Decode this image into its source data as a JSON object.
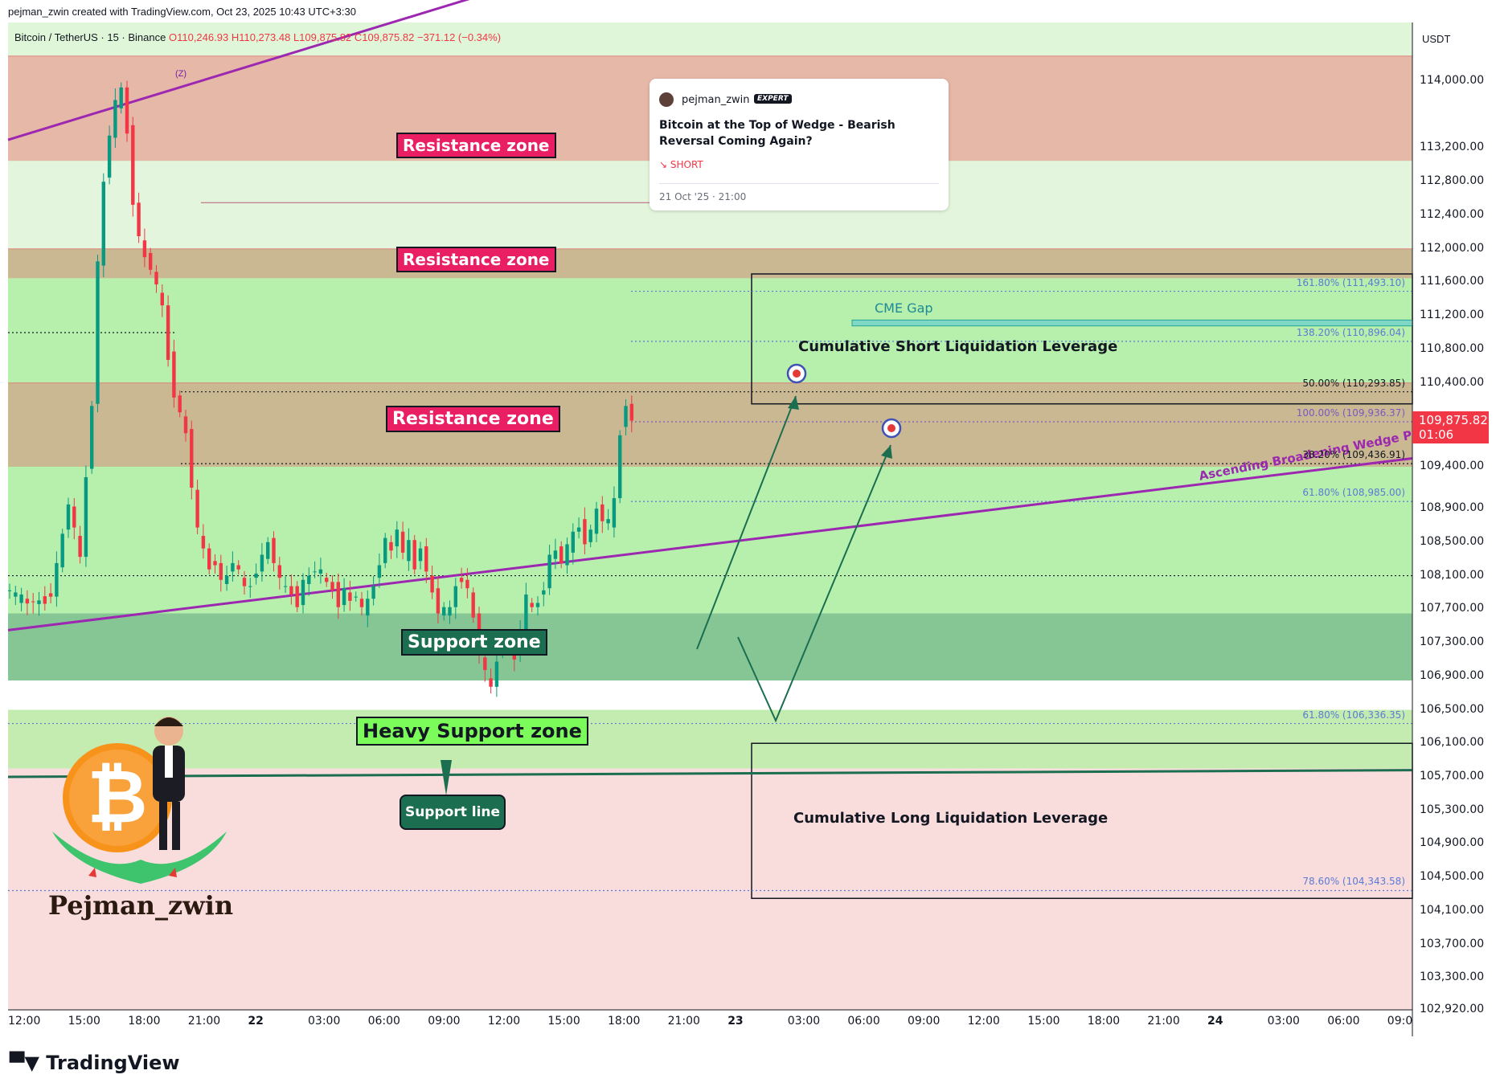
{
  "header": {
    "created_by": "pejman_zwin created with TradingView.com, Oct 23, 2025 10:43 UTC+3:30"
  },
  "symbol": {
    "name": "Bitcoin / TetherUS · 15 · Binance",
    "open": "O110,246.93",
    "high": "H110,273.48",
    "low": "L109,875.82",
    "close": "C109,875.82",
    "change": "−371.12 (−0.34%)"
  },
  "idea": {
    "author": "pejman_zwin",
    "badge": "EXPERT",
    "title": "Bitcoin at the Top of Wedge - Bearish Reversal Coming Again?",
    "direction": "↘ SHORT",
    "date": "21 Oct '25 · 21:00"
  },
  "price_axis": {
    "currency": "USDT",
    "last_price": "109,875.82",
    "countdown": "01:06"
  },
  "zones": [
    {
      "label": "Resistance zone",
      "low": 113050,
      "high": 114300,
      "color": "#e6b8a8"
    },
    {
      "label": "Resistance zone",
      "low": 111650,
      "high": 112000,
      "color": "#c9b891"
    },
    {
      "label": "Resistance zone",
      "low": 109400,
      "high": 110400,
      "color": "#c9b891"
    },
    {
      "label": "Support zone",
      "low": 106850,
      "high": 107650,
      "color": "#86c694"
    },
    {
      "label": "Heavy Support zone",
      "low": 105800,
      "high": 106500,
      "color": "#c4ecb0"
    }
  ],
  "annotations": {
    "support_line": "Support line",
    "cme_gap": "CME Gap",
    "short_liq": "Cumulative Short Liquidation Leverage",
    "long_liq": "Cumulative Long Liquidation Leverage",
    "wedge": "Ascending Broadening Wedge Pa",
    "wave_label": "(Z)",
    "logo_name": "Pejman_zwin",
    "brand": "TradingView"
  },
  "fib_levels": [
    {
      "label": "161.80% (111,493.10)",
      "value": 111493.1,
      "color": "#5b7bd5"
    },
    {
      "label": "138.20% (110,896.04)",
      "value": 110896.04,
      "color": "#5b7bd5"
    },
    {
      "label": "50.00% (110,293.85)",
      "value": 110293.85,
      "color": "#131722"
    },
    {
      "label": "100.00% (109,936.37)",
      "value": 109936.37,
      "color": "#7e57c2"
    },
    {
      "label": "38.20% (109,436.91)",
      "value": 109436.91,
      "color": "#131722"
    },
    {
      "label": "61.80% (108,985.00)",
      "value": 108985.0,
      "color": "#5b7bd5"
    },
    {
      "label": "61.80% (106,336.35)",
      "value": 106336.35,
      "color": "#5b7bd5"
    },
    {
      "label": "78.60% (104,343.58)",
      "value": 104343.58,
      "color": "#5b7bd5"
    }
  ],
  "chart_data": {
    "type": "candlestick",
    "title": "",
    "xlabel": "",
    "ylabel": "",
    "ylim": [
      102920,
      114700
    ],
    "y_ticks": [
      "114,000.00",
      "113,200.00",
      "112,800.00",
      "112,400.00",
      "112,000.00",
      "111,600.00",
      "111,200.00",
      "110,800.00",
      "110,400.00",
      "109,400.00",
      "108,900.00",
      "108,500.00",
      "108,100.00",
      "107,700.00",
      "107,300.00",
      "106,900.00",
      "106,500.00",
      "106,100.00",
      "105,700.00",
      "105,300.00",
      "104,900.00",
      "104,500.00",
      "104,100.00",
      "103,700.00",
      "103,300.00",
      "102,920.00"
    ],
    "y_tick_values": [
      114000,
      113200,
      112800,
      112400,
      112000,
      111600,
      111200,
      110800,
      110400,
      109400,
      108900,
      108500,
      108100,
      107700,
      107300,
      106900,
      106500,
      106100,
      105700,
      105300,
      104900,
      104500,
      104100,
      103700,
      103300,
      102920
    ],
    "x_ticks": [
      "12:00",
      "15:00",
      "18:00",
      "21:00",
      "22",
      "03:00",
      "06:00",
      "09:00",
      "12:00",
      "15:00",
      "18:00",
      "21:00",
      "23",
      "03:00",
      "06:00",
      "09:00",
      "12:00",
      "15:00",
      "18:00",
      "21:00",
      "24",
      "03:00",
      "06:00",
      "09:0"
    ],
    "x_bold": [
      "22",
      "23",
      "24"
    ],
    "price_path": [
      [
        0,
        107950
      ],
      [
        3,
        107800
      ],
      [
        6,
        107780
      ],
      [
        8,
        107900
      ],
      [
        9,
        108200
      ],
      [
        10,
        108600
      ],
      [
        11,
        109000
      ],
      [
        12,
        108600
      ],
      [
        13,
        108300
      ],
      [
        14,
        109300
      ],
      [
        15,
        110200
      ],
      [
        16,
        111800
      ],
      [
        17,
        112800
      ],
      [
        18,
        113400
      ],
      [
        19,
        113700
      ],
      [
        20,
        113900
      ],
      [
        21,
        113400
      ],
      [
        22,
        112600
      ],
      [
        23,
        112100
      ],
      [
        24,
        111900
      ],
      [
        25,
        111800
      ],
      [
        26,
        111500
      ],
      [
        27,
        111300
      ],
      [
        28,
        110700
      ],
      [
        29,
        110300
      ],
      [
        30,
        110000
      ],
      [
        31,
        109800
      ],
      [
        32,
        109200
      ],
      [
        33,
        108600
      ],
      [
        34,
        108400
      ],
      [
        35,
        108200
      ],
      [
        36,
        108300
      ],
      [
        37,
        108000
      ],
      [
        38,
        108100
      ],
      [
        39,
        108300
      ],
      [
        40,
        108100
      ],
      [
        41,
        107950
      ],
      [
        42,
        108000
      ],
      [
        43,
        108200
      ],
      [
        44,
        108300
      ],
      [
        45,
        108500
      ],
      [
        46,
        108300
      ],
      [
        47,
        108000
      ],
      [
        48,
        107950
      ],
      [
        49,
        107900
      ],
      [
        50,
        107800
      ],
      [
        51,
        108000
      ],
      [
        52,
        108100
      ],
      [
        53,
        108200
      ],
      [
        54,
        108100
      ],
      [
        55,
        108000
      ],
      [
        56,
        107950
      ],
      [
        57,
        107800
      ],
      [
        58,
        107900
      ],
      [
        59,
        107800
      ],
      [
        60,
        107900
      ],
      [
        61,
        107650
      ],
      [
        62,
        107800
      ],
      [
        63,
        108000
      ],
      [
        64,
        108300
      ],
      [
        65,
        108500
      ],
      [
        66,
        108400
      ],
      [
        67,
        108700
      ],
      [
        68,
        108300
      ],
      [
        69,
        108500
      ],
      [
        70,
        108200
      ],
      [
        71,
        108500
      ],
      [
        72,
        108100
      ],
      [
        73,
        107900
      ],
      [
        74,
        107700
      ],
      [
        75,
        107650
      ],
      [
        76,
        107700
      ],
      [
        77,
        108000
      ],
      [
        78,
        108100
      ],
      [
        79,
        107900
      ],
      [
        80,
        107600
      ],
      [
        81,
        107200
      ],
      [
        82,
        106900
      ],
      [
        83,
        106750
      ],
      [
        84,
        107100
      ],
      [
        85,
        107400
      ],
      [
        86,
        107200
      ],
      [
        87,
        107100
      ],
      [
        88,
        107500
      ],
      [
        89,
        107800
      ],
      [
        90,
        107700
      ],
      [
        91,
        107800
      ],
      [
        92,
        108000
      ],
      [
        93,
        108300
      ],
      [
        94,
        108400
      ],
      [
        95,
        108300
      ],
      [
        96,
        108400
      ],
      [
        97,
        108600
      ],
      [
        98,
        108700
      ],
      [
        99,
        108550
      ],
      [
        100,
        108600
      ],
      [
        101,
        108900
      ],
      [
        102,
        108800
      ],
      [
        103,
        108700
      ],
      [
        104,
        109000
      ],
      [
        105,
        109800
      ],
      [
        106,
        110200
      ],
      [
        107,
        109900
      ]
    ]
  }
}
